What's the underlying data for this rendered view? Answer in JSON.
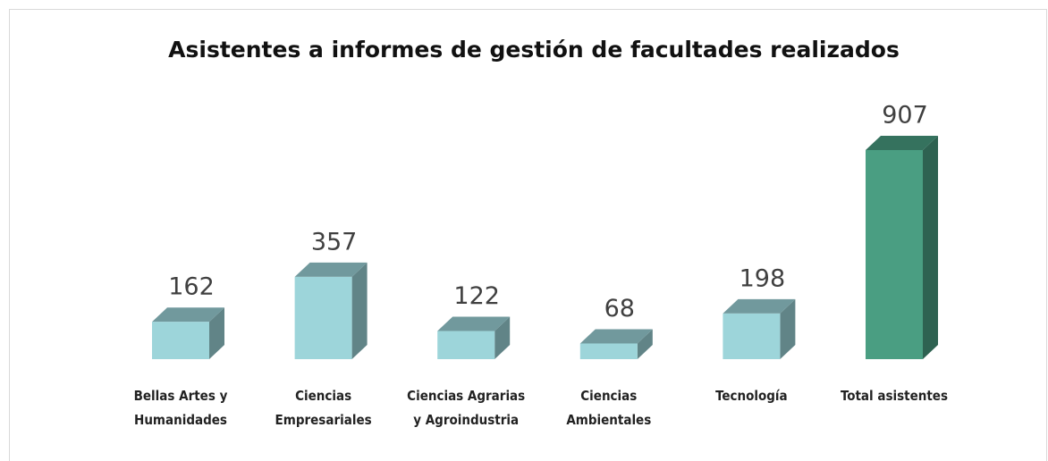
{
  "chart_data": {
    "type": "bar3d",
    "title": "Asistentes a informes de gestión de facultades realizados",
    "categories": [
      "Bellas Artes y Humanidades",
      "Ciencias Empresariales",
      "Ciencias Agrarias y Agroindustria",
      "Ciencias Ambientales",
      "Tecnología",
      "Total asistentes"
    ],
    "values": [
      162,
      357,
      122,
      68,
      198,
      907
    ],
    "colors": [
      "#9dd5da",
      "#9dd5da",
      "#9dd5da",
      "#9dd5da",
      "#9dd5da",
      "#4a9e82"
    ]
  }
}
